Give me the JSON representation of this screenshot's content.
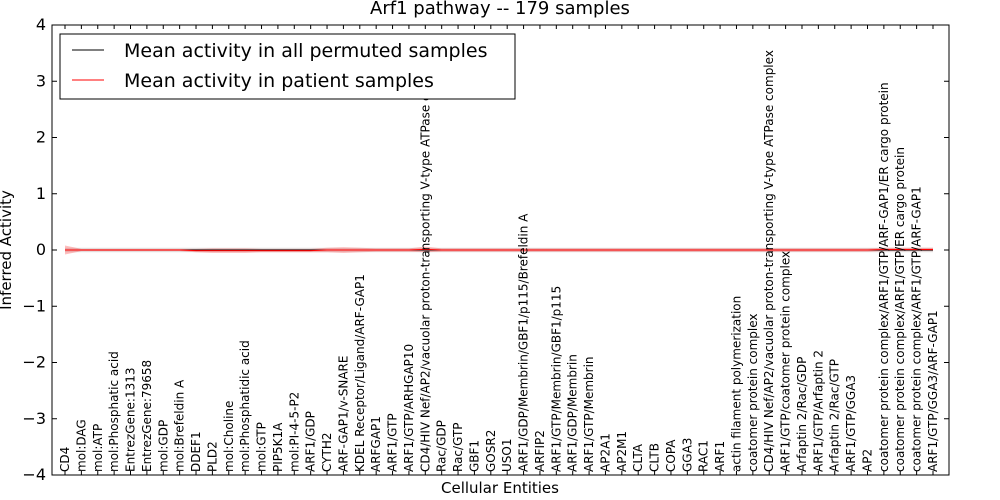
{
  "chart_data": {
    "type": "line",
    "title": "Arf1 pathway -- 179 samples",
    "xlabel": "Cellular Entities",
    "ylabel": "Inferred Activity",
    "ylim": [
      -4,
      4
    ],
    "yticks": [
      "4",
      "3",
      "2",
      "1",
      "0",
      "−1",
      "−2",
      "−3",
      "−4"
    ],
    "legend_position": "top-left",
    "categories": [
      "CD4",
      "mol:DAG",
      "mol:ATP",
      "mol:Phosphatic acid",
      "EntrezGene:1313",
      "EntrezGene:79658",
      "mol:GDP",
      "mol:Brefeldin A",
      "DDEF1",
      "PLD2",
      "mol:Choline",
      "mol:Phosphatidic acid",
      "mol:GTP",
      "PIP5K1A",
      "mol:PI-4-5-P2",
      "ARF1/GDP",
      "CYTH2",
      "ARF-GAP1/v-SNARE",
      "KDEL Receptor/Ligand/ARF-GAP1",
      "ARFGAP1",
      "ARF1/GTP",
      "ARF1/GTP/ARHGAP10",
      "CD4/HIV Nef/AP2/vacuolar proton-transporting V-type ATPase complex",
      "Rac/GDP",
      "Rac/GTP",
      "GBF1",
      "GOSR2",
      "USO1",
      "ARF1/GDP/Membrin/GBF1/p115/Brefeldin A",
      "ARFIP2",
      "ARF1/GTP/Membrin/GBF1/p115",
      "ARF1/GDP/Membrin",
      "ARF1/GTP/Membrin",
      "AP2A1",
      "AP2M1",
      "CLTA",
      "CLTB",
      "COPA",
      "GGA3",
      "RAC1",
      "ARF1",
      "actin filament polymerization",
      "coatomer protein complex",
      "CD4/HIV Nef/AP2/vacuolar proton-transporting V-type ATPase complex",
      "ARF1/GTP/coatomer protein complex",
      "Arfaptin 2/Rac/GDP",
      "ARF1/GTP/Arfaptin 2",
      "Arfaptin 2/Rac/GTP",
      "ARF1/GTP/GGA3",
      "AP2",
      "coatomer protein complex/ARF1/GTP/ARF-GAP1/ER cargo protein",
      "coatomer protein complex/ARF1/GTP/ER cargo protein",
      "coatomer protein complex/ARF1/GTP/ARF-GAP1",
      "ARF1/GTP/GGA3/ARF-GAP1"
    ],
    "series": [
      {
        "name": "Mean activity in all permuted samples",
        "color": "#000000",
        "values": [
          0,
          0,
          0,
          0,
          0,
          0,
          0,
          0,
          0,
          0,
          0,
          0,
          0,
          0,
          0,
          0,
          0,
          0,
          0,
          0,
          0,
          0,
          0,
          0,
          0,
          0,
          0,
          0,
          0,
          0,
          0,
          0,
          0,
          0,
          0,
          0,
          0,
          0,
          0,
          0,
          0,
          0,
          0,
          0,
          0,
          0,
          0,
          0,
          0,
          0,
          0,
          0,
          0,
          0
        ]
      },
      {
        "name": "Mean activity in patient samples",
        "color": "#ff0000",
        "values": [
          0,
          0,
          0,
          0,
          0,
          0,
          0,
          0,
          -0.01,
          -0.01,
          -0.01,
          -0.01,
          -0.01,
          -0.01,
          -0.01,
          -0.01,
          0,
          0,
          0,
          0,
          0,
          0,
          0.01,
          0,
          0,
          0,
          0,
          0,
          0,
          0,
          0,
          0,
          0,
          0,
          0,
          0,
          0,
          0,
          0,
          0,
          0,
          0,
          0,
          0,
          0,
          0,
          0,
          0,
          0,
          0,
          0.01,
          0.01,
          0.01,
          0.01
        ],
        "band_halfwidth": [
          0.08,
          0.02,
          0.02,
          0.02,
          0.02,
          0.02,
          0.02,
          0.02,
          0.03,
          0.04,
          0.04,
          0.04,
          0.03,
          0.03,
          0.03,
          0.03,
          0.04,
          0.05,
          0.04,
          0.03,
          0.03,
          0.03,
          0.05,
          0.03,
          0.03,
          0.03,
          0.03,
          0.03,
          0.03,
          0.03,
          0.03,
          0.03,
          0.03,
          0.03,
          0.03,
          0.03,
          0.03,
          0.03,
          0.03,
          0.03,
          0.03,
          0.03,
          0.03,
          0.03,
          0.03,
          0.03,
          0.03,
          0.03,
          0.03,
          0.03,
          0.03,
          0.03,
          0.03,
          0.03
        ]
      }
    ],
    "permuted_band_halfwidth": 0.04,
    "legend": [
      {
        "label": "Mean activity in all permuted samples",
        "color": "#000000"
      },
      {
        "label": "Mean activity in patient samples",
        "color": "#ff0000"
      }
    ]
  }
}
